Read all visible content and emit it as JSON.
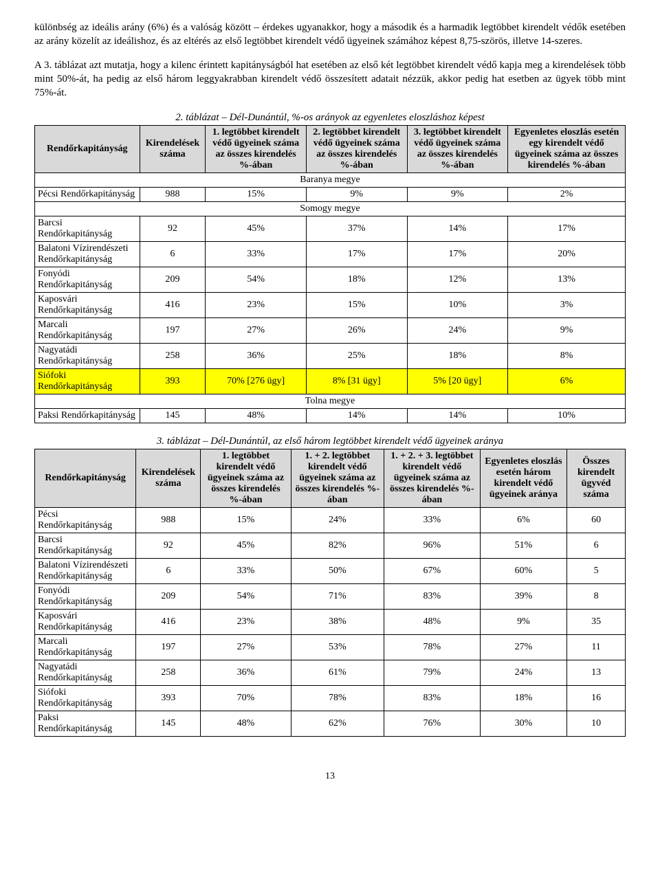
{
  "para1": "különbség az ideális arány (6%) és a valóság között – érdekes ugyanakkor, hogy a második és a harmadik legtöbbet kirendelt védők esetében az arány közelít az ideálishoz, és az eltérés az első legtöbbet kirendelt védő ügyeinek számához képest 8,75-szörös, illetve 14-szeres.",
  "para2": "A 3. táblázat azt mutatja, hogy a kilenc érintett kapitányságból hat esetében az első két legtöbbet kirendelt védő kapja meg a kirendelések több mint 50%-át, ha pedig az első három leggyakrabban kirendelt védő összesített adatait nézzük, akkor pedig hat esetben az ügyek több mint 75%-át.",
  "table2": {
    "caption": "2. táblázat – Dél-Dunántúl, %-os arányok az egyenletes eloszláshoz képest",
    "headers": [
      "Rendőrkapitányság",
      "Kirendelések száma",
      "1. legtöbbet kirendelt védő ügyeinek száma az összes kirendelés %-ában",
      "2. legtöbbet kirendelt védő ügyeinek száma az összes kirendelés %-ában",
      "3. legtöbbet kirendelt védő ügyeinek száma az összes kirendelés %-ában",
      "Egyenletes eloszlás esetén egy kirendelt védő ügyeinek száma az összes kirendelés %-ában"
    ],
    "sections": [
      {
        "title": "Baranya megye",
        "rows": [
          [
            "Pécsi Rendőrkapitányság",
            "988",
            "15%",
            "9%",
            "9%",
            "2%"
          ]
        ]
      },
      {
        "title": "Somogy megye",
        "rows": [
          [
            "Barcsi Rendőrkapitányság",
            "92",
            "45%",
            "37%",
            "14%",
            "17%"
          ],
          [
            "Balatoni Vízirendészeti Rendőrkapitányság",
            "6",
            "33%",
            "17%",
            "17%",
            "20%"
          ],
          [
            "Fonyódi Rendőrkapitányság",
            "209",
            "54%",
            "18%",
            "12%",
            "13%"
          ],
          [
            "Kaposvári Rendőrkapitányság",
            "416",
            "23%",
            "15%",
            "10%",
            "3%"
          ],
          [
            "Marcali Rendőrkapitányság",
            "197",
            "27%",
            "26%",
            "24%",
            "9%"
          ],
          [
            "Nagyatádi Rendőrkapitányság",
            "258",
            "36%",
            "25%",
            "18%",
            "8%"
          ],
          [
            "Siófoki Rendőrkapitányság",
            "393",
            "70% [276 ügy]",
            "8% [31 ügy]",
            "5% [20 ügy]",
            "6%"
          ]
        ],
        "highlight_index": 6
      },
      {
        "title": "Tolna megye",
        "rows": [
          [
            "Paksi Rendőrkapitányság",
            "145",
            "48%",
            "14%",
            "14%",
            "10%"
          ]
        ]
      }
    ]
  },
  "table3": {
    "caption": "3. táblázat – Dél-Dunántúl, az első három legtöbbet kirendelt védő ügyeinek aránya",
    "headers": [
      "Rendőrkapitányság",
      "Kirendelések száma",
      "1. legtöbbet kirendelt védő ügyeinek száma az összes kirendelés %-ában",
      "1. + 2. legtöbbet kirendelt védő ügyeinek száma az összes kirendelés %-ában",
      "1. + 2. + 3. legtöbbet kirendelt védő ügyeinek száma az összes kirendelés %-ában",
      "Egyenletes eloszlás esetén három kirendelt védő ügyeinek aránya",
      "Összes kirendelt ügyvéd száma"
    ],
    "rows": [
      [
        "Pécsi Rendőrkapitányság",
        "988",
        "15%",
        "24%",
        "33%",
        "6%",
        "60"
      ],
      [
        "Barcsi Rendőrkapitányság",
        "92",
        "45%",
        "82%",
        "96%",
        "51%",
        "6"
      ],
      [
        "Balatoni Vízirendészeti Rendőrkapitányság",
        "6",
        "33%",
        "50%",
        "67%",
        "60%",
        "5"
      ],
      [
        "Fonyódi Rendőrkapitányság",
        "209",
        "54%",
        "71%",
        "83%",
        "39%",
        "8"
      ],
      [
        "Kaposvári Rendőrkapitányság",
        "416",
        "23%",
        "38%",
        "48%",
        "9%",
        "35"
      ],
      [
        "Marcali Rendőrkapitányság",
        "197",
        "27%",
        "53%",
        "78%",
        "27%",
        "11"
      ],
      [
        "Nagyatádi Rendőrkapitányság",
        "258",
        "36%",
        "61%",
        "79%",
        "24%",
        "13"
      ],
      [
        "Siófoki Rendőrkapitányság",
        "393",
        "70%",
        "78%",
        "83%",
        "18%",
        "16"
      ],
      [
        "Paksi Rendőrkapitányság",
        "145",
        "48%",
        "62%",
        "76%",
        "30%",
        "10"
      ]
    ]
  },
  "page_number": "13"
}
